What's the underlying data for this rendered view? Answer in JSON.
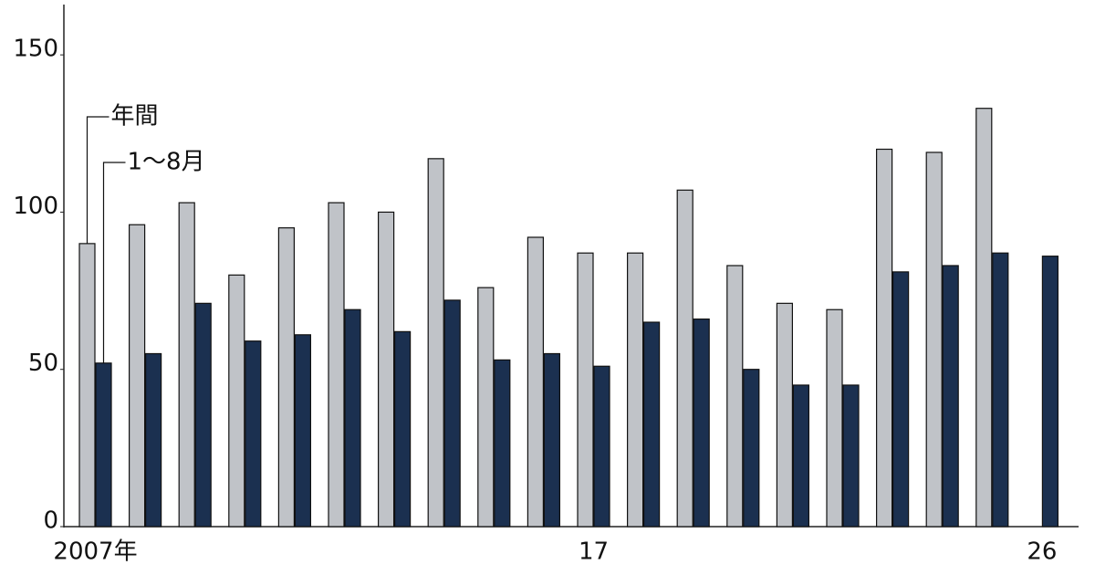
{
  "chart_data": {
    "type": "bar",
    "categories": [
      "2007年",
      null,
      null,
      null,
      null,
      null,
      null,
      null,
      null,
      null,
      "17",
      null,
      null,
      null,
      null,
      null,
      null,
      null,
      null,
      "26"
    ],
    "series": [
      {
        "name": "年間",
        "color": "#c0c3c8",
        "values": [
          90,
          96,
          103,
          80,
          95,
          103,
          100,
          117,
          76,
          92,
          87,
          87,
          107,
          83,
          71,
          69,
          120,
          119,
          133,
          null
        ]
      },
      {
        "name": "1〜8月",
        "color": "#1b3050",
        "values": [
          52,
          55,
          71,
          59,
          61,
          69,
          62,
          72,
          53,
          55,
          51,
          65,
          66,
          50,
          45,
          45,
          81,
          83,
          87,
          86
        ]
      }
    ],
    "ylim": [
      0,
      166
    ],
    "yticks": [
      0,
      50,
      100,
      150
    ]
  }
}
